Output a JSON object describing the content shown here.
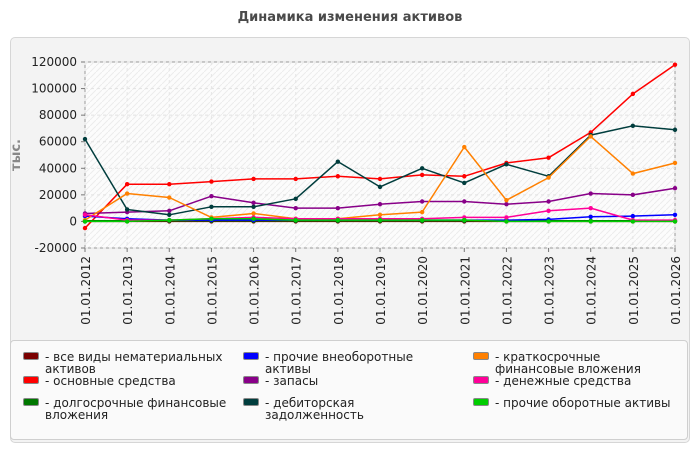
{
  "chart_data": {
    "type": "line",
    "title": "Динамика изменения активов",
    "ylabel": "тыс.",
    "xlabel": "",
    "ylim": [
      -20000,
      120000
    ],
    "yticks": [
      -20000,
      0,
      20000,
      40000,
      60000,
      80000,
      100000,
      120000
    ],
    "grid": true,
    "legend_position": "bottom",
    "categories": [
      "01.01.2012",
      "01.01.2013",
      "01.01.2014",
      "01.01.2015",
      "01.01.2016",
      "01.01.2017",
      "01.01.2018",
      "01.01.2019",
      "01.01.2020",
      "01.01.2021",
      "01.01.2022",
      "01.01.2023",
      "01.01.2024",
      "01.01.2025",
      "01.01.2026"
    ],
    "series": [
      {
        "name": "все виды нематериальных активов",
        "color": "#7a0000",
        "values": [
          0,
          0,
          0,
          0,
          0,
          0,
          0,
          0,
          0,
          0,
          0,
          0,
          0,
          0,
          0
        ]
      },
      {
        "name": "основные средства",
        "color": "#ff0000",
        "values": [
          -5000,
          28000,
          28000,
          30000,
          32000,
          32000,
          34000,
          32000,
          35000,
          34000,
          44000,
          48000,
          67000,
          96000,
          118000
        ]
      },
      {
        "name": "долгосрочные финансовые вложения",
        "color": "#007700",
        "values": [
          500,
          500,
          500,
          500,
          500,
          500,
          500,
          500,
          500,
          500,
          500,
          500,
          500,
          500,
          500
        ]
      },
      {
        "name": "прочие внеоборотные активы",
        "color": "#0000ff",
        "values": [
          4000,
          2000,
          1000,
          1000,
          1000,
          1000,
          1000,
          1000,
          1000,
          1000,
          1000,
          1500,
          3500,
          4000,
          5000
        ]
      },
      {
        "name": "запасы",
        "color": "#880088",
        "values": [
          6000,
          7000,
          8000,
          19000,
          14000,
          10000,
          10000,
          13000,
          15000,
          15000,
          13000,
          15000,
          21000,
          20000,
          25000
        ]
      },
      {
        "name": "дебиторская задолженность",
        "color": "#003d3d",
        "values": [
          62000,
          9000,
          5000,
          11000,
          11000,
          17000,
          45000,
          26000,
          40000,
          29000,
          43000,
          34000,
          65000,
          72000,
          69000
        ]
      },
      {
        "name": "краткосрочные финансовые вложения",
        "color": "#ff8000",
        "values": [
          1000,
          21000,
          18000,
          3000,
          6000,
          2000,
          2000,
          5000,
          7000,
          56000,
          16000,
          33000,
          64000,
          36000,
          44000
        ]
      },
      {
        "name": "денежные средства",
        "color": "#ff0099",
        "values": [
          5000,
          1000,
          1000,
          2000,
          3000,
          2000,
          2000,
          2000,
          2000,
          3000,
          3000,
          8000,
          10000,
          1000,
          1000
        ]
      },
      {
        "name": "прочие оборотные активы",
        "color": "#00cc00",
        "values": [
          0,
          0,
          1000,
          2000,
          2000,
          1000,
          1000,
          1000,
          1000,
          1000,
          0,
          0,
          0,
          0,
          0
        ]
      }
    ]
  }
}
